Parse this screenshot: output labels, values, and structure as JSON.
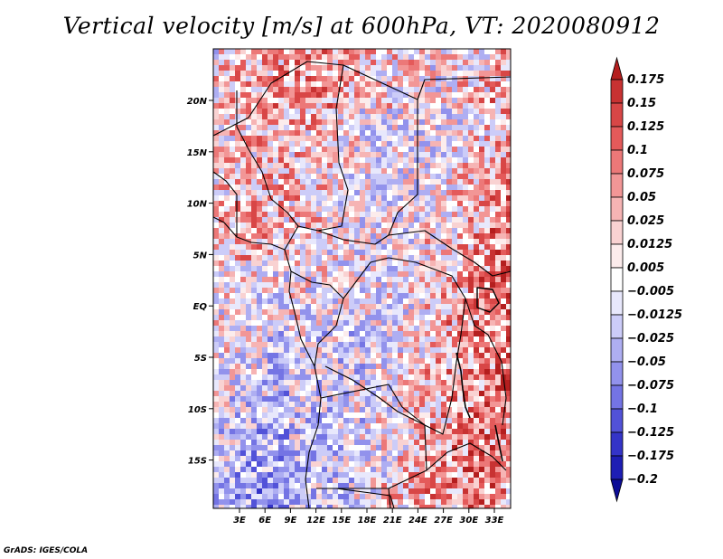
{
  "title": "Vertical velocity [m/s] at 600hPa, VT: 2020080912",
  "credit": "GrADS: IGES/COLA",
  "map": {
    "lon_labels": [
      "3E",
      "6E",
      "9E",
      "12E",
      "15E",
      "18E",
      "21E",
      "24E",
      "27E",
      "30E",
      "33E"
    ],
    "lat_labels": [
      "20N",
      "15N",
      "10N",
      "5N",
      "EQ",
      "5S",
      "10S",
      "15S"
    ]
  },
  "colorbar": {
    "labels": [
      "0.175",
      "0.15",
      "0.125",
      "0.1",
      "0.075",
      "0.05",
      "0.025",
      "0.0125",
      "0.005",
      "−0.005",
      "−0.0125",
      "−0.025",
      "−0.05",
      "−0.075",
      "−0.1",
      "−0.125",
      "−0.175",
      "−0.2"
    ],
    "colors": [
      "#b41e1e",
      "#c83232",
      "#d84646",
      "#e45a5a",
      "#ec7878",
      "#f29696",
      "#f6b4b4",
      "#f9d2d2",
      "#fcecec",
      "#ffffff",
      "#e8e8fc",
      "#ccccf8",
      "#aeaef2",
      "#9292ec",
      "#7474e4",
      "#5252d8",
      "#3434c8",
      "#1e1eb4",
      "#0c0c96"
    ]
  },
  "colors": {
    "positive": "#d03c3c",
    "negative": "#6060e0",
    "coast": "#000000"
  }
}
